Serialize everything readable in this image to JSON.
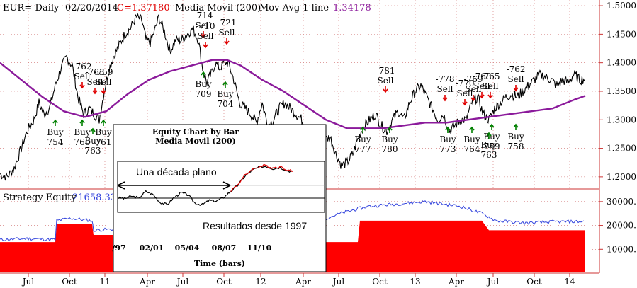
{
  "header": {
    "symbol": "EUR=-Daily",
    "date": "02/20/2014",
    "close_label": "C=1.37180",
    "indicator1": "Media Movil (200)",
    "indicator2_label": "Mov Avg 1 line",
    "indicator2_value": "1.34178",
    "close_color": "#e00000",
    "ma_color": "#8b1a9b"
  },
  "chart_data": [
    {
      "type": "line",
      "name": "price",
      "ylim": [
        1.18,
        1.51
      ],
      "yticks": [
        "1.5000",
        "1.4500",
        "1.4000",
        "1.3500",
        "1.3000",
        "1.2500",
        "1.2000"
      ],
      "ytick_values": [
        1.5,
        1.45,
        1.4,
        1.35,
        1.3,
        1.25,
        1.2
      ],
      "xticks": [
        "Jul",
        "Oct",
        "11",
        "Apr",
        "Jul",
        "Oct",
        "12",
        "Apr",
        "Jul",
        "Oct",
        "13",
        "Apr",
        "Jul",
        "Oct",
        "14"
      ],
      "grid": true,
      "series": [
        {
          "name": "EUR close",
          "color": "#000000",
          "x": [
            0,
            10,
            20,
            30,
            38,
            48,
            55,
            62,
            70,
            78,
            86,
            94,
            102,
            110,
            118,
            126,
            133,
            140,
            147,
            154,
            160,
            168,
            176,
            184,
            192,
            200,
            206,
            212,
            218,
            224,
            232,
            240,
            248,
            256,
            264,
            272,
            280,
            286,
            292,
            298,
            304,
            310,
            316,
            322,
            330,
            338,
            346,
            354,
            362,
            370,
            378,
            386,
            394,
            402,
            410,
            418,
            426,
            434,
            442,
            450,
            458,
            466,
            474,
            482,
            490,
            498,
            506,
            514,
            522,
            530,
            538,
            546,
            554,
            562,
            570,
            578,
            586,
            594,
            602,
            610,
            618,
            626,
            634,
            642,
            650,
            658,
            666,
            674,
            682,
            690,
            698,
            706,
            714,
            722,
            730,
            738,
            746,
            754,
            762,
            770,
            778,
            786,
            794,
            802,
            810,
            818,
            826
          ],
          "y": [
            1.205,
            1.2,
            1.215,
            1.25,
            1.28,
            1.3,
            1.33,
            1.31,
            1.32,
            1.36,
            1.39,
            1.41,
            1.395,
            1.34,
            1.31,
            1.32,
            1.31,
            1.3,
            1.35,
            1.39,
            1.41,
            1.43,
            1.45,
            1.46,
            1.48,
            1.475,
            1.44,
            1.435,
            1.455,
            1.48,
            1.455,
            1.42,
            1.44,
            1.44,
            1.45,
            1.46,
            1.44,
            1.39,
            1.365,
            1.38,
            1.4,
            1.39,
            1.4,
            1.4,
            1.37,
            1.33,
            1.32,
            1.31,
            1.295,
            1.33,
            1.29,
            1.3,
            1.32,
            1.33,
            1.32,
            1.31,
            1.3,
            1.285,
            1.26,
            1.255,
            1.265,
            1.27,
            1.24,
            1.22,
            1.225,
            1.24,
            1.27,
            1.29,
            1.3,
            1.31,
            1.29,
            1.28,
            1.3,
            1.315,
            1.3,
            1.33,
            1.35,
            1.36,
            1.34,
            1.32,
            1.3,
            1.31,
            1.28,
            1.29,
            1.3,
            1.3,
            1.33,
            1.34,
            1.31,
            1.3,
            1.32,
            1.33,
            1.34,
            1.345,
            1.34,
            1.35,
            1.36,
            1.37,
            1.38,
            1.375,
            1.37,
            1.36,
            1.37,
            1.365,
            1.38,
            1.37,
            1.372
          ]
        },
        {
          "name": "Media Movil (200)",
          "color": "#8b1a9b",
          "x": [
            0,
            30,
            60,
            90,
            120,
            150,
            180,
            210,
            240,
            270,
            300,
            320,
            340,
            370,
            400,
            430,
            460,
            490,
            510,
            540,
            570,
            600,
            630,
            660,
            690,
            720,
            750,
            780,
            810,
            826
          ],
          "y": [
            1.4,
            1.37,
            1.34,
            1.315,
            1.305,
            1.315,
            1.345,
            1.37,
            1.385,
            1.395,
            1.405,
            1.405,
            1.395,
            1.37,
            1.35,
            1.325,
            1.3,
            1.285,
            1.285,
            1.285,
            1.29,
            1.295,
            1.295,
            1.3,
            1.305,
            1.31,
            1.315,
            1.32,
            1.335,
            1.342
          ]
        }
      ]
    },
    {
      "type": "area",
      "name": "strategy_equity",
      "title": "Strategy Equity",
      "last_value": "21658.33",
      "ylim": [
        0,
        35000
      ],
      "yticks": [
        "30000.",
        "20000.",
        "10000."
      ],
      "ytick_values": [
        30000,
        20000,
        10000
      ],
      "series": [
        {
          "name": "equity_steps",
          "color": "#ff0000",
          "x": [
            0,
            78,
            80,
            130,
            132,
            450,
            452,
            505,
            508,
            680,
            690,
            826
          ],
          "y": [
            13000,
            13000,
            20500,
            20500,
            16000,
            16000,
            13000,
            13000,
            22000,
            22000,
            18000,
            18000
          ]
        },
        {
          "name": "equity_line",
          "color": "#3344dd",
          "x": [
            0,
            40,
            78,
            80,
            100,
            130,
            132,
            200,
            300,
            400,
            450,
            480,
            505,
            520,
            560,
            600,
            650,
            680,
            700,
            740,
            780,
            826
          ],
          "y": [
            14000,
            14500,
            14000,
            22000,
            23000,
            22000,
            18000,
            19000,
            20000,
            21000,
            22000,
            25000,
            27000,
            28000,
            29000,
            30000,
            28000,
            25000,
            22000,
            21000,
            21500,
            21658
          ]
        }
      ]
    },
    {
      "type": "line",
      "name": "inset_equity",
      "title": "Equity Chart by Bar",
      "subtitle": "Media Movil (200)",
      "xlabel": "Time (bars)",
      "xticks": [
        "/97",
        "02/01",
        "05/04",
        "08/07",
        "11/10"
      ],
      "annotation_flat": "Una década plano",
      "annotation_results": "Resultados desde 1997",
      "series": [
        {
          "name": "inset_equity",
          "color": "#000000",
          "x": [
            0,
            10,
            20,
            30,
            40,
            50,
            60,
            70,
            80,
            90,
            100,
            110,
            120,
            130,
            140,
            150,
            160,
            170,
            180,
            190,
            200,
            210,
            220,
            230,
            240,
            250
          ],
          "y": [
            20,
            18,
            22,
            19,
            30,
            25,
            12,
            8,
            20,
            28,
            24,
            10,
            8,
            15,
            14,
            20,
            30,
            40,
            55,
            65,
            70,
            72,
            68,
            70,
            65,
            62
          ]
        },
        {
          "name": "inset_equity_red",
          "color": "#e00000",
          "x": [
            160,
            170,
            180,
            190,
            200,
            210,
            220,
            230,
            240,
            250
          ],
          "y": [
            31,
            41,
            56,
            66,
            71,
            73,
            69,
            71,
            66,
            63
          ]
        }
      ]
    }
  ],
  "signals": [
    {
      "kind": "buy",
      "text": "Buy",
      "num": "754"
    },
    {
      "kind": "sell",
      "text": "Sell",
      "num": "-762"
    },
    {
      "kind": "sell",
      "text": "Sell",
      "num": "-763"
    },
    {
      "kind": "sell",
      "text": "Sell",
      "num": "-759"
    },
    {
      "kind": "buy",
      "text": "Buy",
      "num": "760"
    },
    {
      "kind": "buy",
      "text": "Buy",
      "num": "763"
    },
    {
      "kind": "buy",
      "text": "Buy",
      "num": "761"
    },
    {
      "kind": "sell",
      "text": "Sell",
      "num": "-714"
    },
    {
      "kind": "sell",
      "text": "Sell",
      "num": "-710"
    },
    {
      "kind": "sell",
      "text": "Sell",
      "num": "-721"
    },
    {
      "kind": "buy",
      "text": "Buy",
      "num": "709"
    },
    {
      "kind": "buy",
      "text": "Buy",
      "num": "704"
    },
    {
      "kind": "sell",
      "text": "Sell",
      "num": "-781"
    },
    {
      "kind": "buy",
      "text": "Buy",
      "num": "777"
    },
    {
      "kind": "buy",
      "text": "Buy",
      "num": "780"
    },
    {
      "kind": "sell",
      "text": "Sell",
      "num": "-778"
    },
    {
      "kind": "sell",
      "text": "Sell",
      "num": "-770"
    },
    {
      "kind": "sell",
      "text": "Sell",
      "num": "-769"
    },
    {
      "kind": "sell",
      "text": "Sell",
      "num": "-768"
    },
    {
      "kind": "sell",
      "text": "Sell",
      "num": "-765"
    },
    {
      "kind": "sell",
      "text": "Sell",
      "num": "-762"
    },
    {
      "kind": "buy",
      "text": "Buy",
      "num": "773"
    },
    {
      "kind": "buy",
      "text": "Buy",
      "num": "764"
    },
    {
      "kind": "buy",
      "text": "Buy",
      "num": "759"
    },
    {
      "kind": "buy",
      "text": "Buy",
      "num": "763"
    },
    {
      "kind": "buy",
      "text": "Buy",
      "num": "758"
    }
  ],
  "inset_bottom_labels": {
    "left": "Buy",
    "right": "Buy"
  }
}
